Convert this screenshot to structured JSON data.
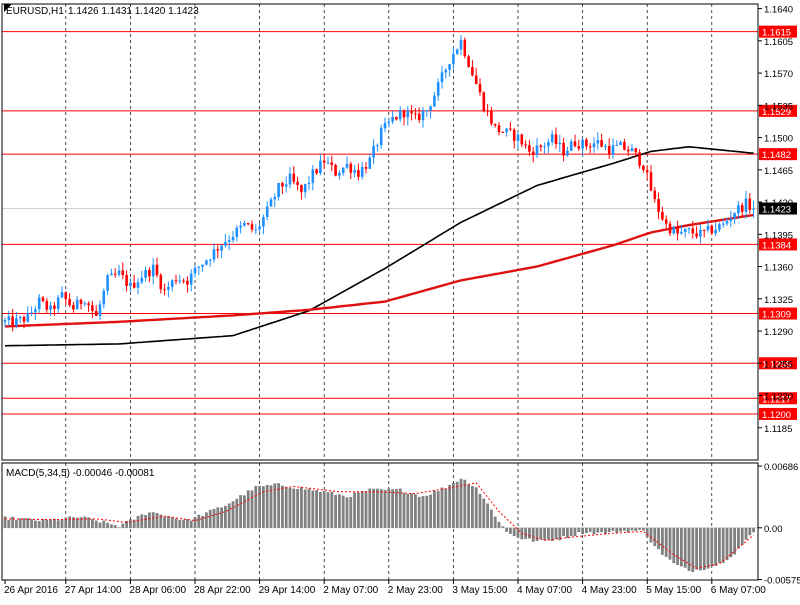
{
  "header": {
    "symbol": "EURUSD,H1",
    "ohlc": "1.1426 1.1431 1.1420 1.1423"
  },
  "macd_header": {
    "label": "MACD(5,34,5) -0.00046 -0.00081"
  },
  "colors": {
    "background": "#ffffff",
    "frame": "#000000",
    "bull_body": "#1e90ff",
    "bear_body": "#ff0000",
    "wick": "#1e90ff",
    "level_line": "#ff0000",
    "ma_fast": "#000000",
    "ma_slow": "#e01010",
    "grid": "#000000",
    "macd_hist": "#808080",
    "macd_signal": "#ff0000",
    "level_label_bg": "#ff0000",
    "current_label_bg": "#000000"
  },
  "chart_data": [
    {
      "type": "candlestick",
      "title": "EURUSD,H1",
      "timeframe": "H1",
      "ylim": [
        1.115,
        1.1645
      ],
      "y_ticks": [
        "1.1640",
        "1.1605",
        "1.1570",
        "1.1535",
        "1.1500",
        "1.1465",
        "1.1430",
        "1.1395",
        "1.1360",
        "1.1325",
        "1.1290",
        "1.1255",
        "1.1220",
        "1.1185"
      ],
      "x_ticks": [
        "26 Apr 2016",
        "27 Apr 14:00",
        "28 Apr 06:00",
        "28 Apr 22:00",
        "29 Apr 14:00",
        "2 May 07:00",
        "2 May 23:00",
        "3 May 15:00",
        "4 May 07:00",
        "4 May 23:00",
        "5 May 15:00",
        "6 May 07:00"
      ],
      "horizontal_levels": [
        "1.1615",
        "1.1529",
        "1.1482",
        "1.1384",
        "1.1309",
        "1.1255",
        "1.1217",
        "1.1200"
      ],
      "current_price": "1.1423",
      "grid": true,
      "close_anchors": [
        [
          0,
          1.13
        ],
        [
          3,
          1.13
        ],
        [
          6,
          1.1305
        ],
        [
          9,
          1.1322
        ],
        [
          12,
          1.1312
        ],
        [
          15,
          1.1328
        ],
        [
          18,
          1.1315
        ],
        [
          21,
          1.1326
        ],
        [
          24,
          1.1305
        ],
        [
          27,
          1.1345
        ],
        [
          30,
          1.1352
        ],
        [
          33,
          1.1338
        ],
        [
          36,
          1.135
        ],
        [
          39,
          1.1358
        ],
        [
          42,
          1.1333
        ],
        [
          45,
          1.1348
        ],
        [
          48,
          1.1345
        ],
        [
          51,
          1.136
        ],
        [
          54,
          1.1372
        ],
        [
          57,
          1.1385
        ],
        [
          60,
          1.1395
        ],
        [
          63,
          1.1405
        ],
        [
          66,
          1.1398
        ],
        [
          69,
          1.142
        ],
        [
          72,
          1.1445
        ],
        [
          75,
          1.1455
        ],
        [
          78,
          1.144
        ],
        [
          81,
          1.146
        ],
        [
          84,
          1.1475
        ],
        [
          87,
          1.1462
        ],
        [
          90,
          1.147
        ],
        [
          93,
          1.1462
        ],
        [
          96,
          1.1475
        ],
        [
          99,
          1.1505
        ],
        [
          102,
          1.152
        ],
        [
          105,
          1.1528
        ],
        [
          108,
          1.152
        ],
        [
          111,
          1.153
        ],
        [
          114,
          1.1555
        ],
        [
          117,
          1.1585
        ],
        [
          120,
          1.1605
        ],
        [
          123,
          1.157
        ],
        [
          126,
          1.1535
        ],
        [
          129,
          1.151
        ],
        [
          132,
          1.1505
        ],
        [
          135,
          1.15
        ],
        [
          138,
          1.1485
        ],
        [
          141,
          1.149
        ],
        [
          144,
          1.1498
        ],
        [
          147,
          1.1485
        ],
        [
          150,
          1.1495
        ],
        [
          153,
          1.1492
        ],
        [
          156,
          1.1495
        ],
        [
          159,
          1.1487
        ],
        [
          162,
          1.149
        ],
        [
          165,
          1.1485
        ],
        [
          168,
          1.147
        ],
        [
          171,
          1.143
        ],
        [
          174,
          1.1405
        ],
        [
          177,
          1.1395
        ],
        [
          180,
          1.1398
        ],
        [
          183,
          1.1395
        ],
        [
          186,
          1.14
        ],
        [
          189,
          1.1405
        ],
        [
          192,
          1.142
        ],
        [
          195,
          1.1428
        ],
        [
          197,
          1.1423
        ]
      ],
      "series": [
        {
          "type": "line",
          "points": [
            [
              0,
              1.1274
            ],
            [
              30,
              1.1276
            ],
            [
              60,
              1.1285
            ],
            [
              80,
              1.1312
            ],
            [
              100,
              1.1358
            ],
            [
              120,
              1.1408
            ],
            [
              140,
              1.1448
            ],
            [
              160,
              1.1472
            ],
            [
              170,
              1.1485
            ],
            [
              180,
              1.149
            ],
            [
              197,
              1.1483
            ]
          ]
        },
        {
          "type": "line",
          "points": [
            [
              0,
              1.1295
            ],
            [
              30,
              1.13
            ],
            [
              60,
              1.1307
            ],
            [
              80,
              1.1313
            ],
            [
              100,
              1.1322
            ],
            [
              120,
              1.1345
            ],
            [
              140,
              1.136
            ],
            [
              160,
              1.1383
            ],
            [
              170,
              1.1397
            ],
            [
              180,
              1.1405
            ],
            [
              197,
              1.1416
            ]
          ]
        }
      ]
    },
    {
      "type": "bar",
      "title": "MACD(5,34,5) -0.00046 -0.00081",
      "ylim": [
        -0.0058,
        0.0072
      ],
      "y_ticks": [
        "0.00686",
        "0.00",
        "-0.00575"
      ],
      "hist_anchors": [
        [
          0,
          0.0011
        ],
        [
          10,
          0.0008
        ],
        [
          20,
          0.0012
        ],
        [
          30,
          0.0002
        ],
        [
          38,
          0.0018
        ],
        [
          42,
          0.0014
        ],
        [
          48,
          0.0008
        ],
        [
          58,
          0.0025
        ],
        [
          66,
          0.0045
        ],
        [
          72,
          0.0048
        ],
        [
          84,
          0.004
        ],
        [
          90,
          0.0035
        ],
        [
          96,
          0.0042
        ],
        [
          104,
          0.0042
        ],
        [
          110,
          0.0035
        ],
        [
          116,
          0.0045
        ],
        [
          120,
          0.0055
        ],
        [
          124,
          0.0045
        ],
        [
          128,
          0.002
        ],
        [
          132,
          -0.0005
        ],
        [
          136,
          -0.0012
        ],
        [
          140,
          -0.0015
        ],
        [
          146,
          -0.0012
        ],
        [
          152,
          -0.0005
        ],
        [
          158,
          -0.0006
        ],
        [
          164,
          -0.0003
        ],
        [
          168,
          -0.0004
        ],
        [
          172,
          -0.0025
        ],
        [
          176,
          -0.004
        ],
        [
          180,
          -0.0048
        ],
        [
          184,
          -0.0045
        ],
        [
          188,
          -0.004
        ],
        [
          192,
          -0.0028
        ],
        [
          197,
          -0.0005
        ]
      ],
      "signal_anchors": [
        [
          0,
          0.001
        ],
        [
          12,
          0.0009
        ],
        [
          24,
          0.001
        ],
        [
          32,
          0.0006
        ],
        [
          42,
          0.0013
        ],
        [
          50,
          0.0008
        ],
        [
          58,
          0.0018
        ],
        [
          68,
          0.004
        ],
        [
          76,
          0.0046
        ],
        [
          88,
          0.004
        ],
        [
          98,
          0.004
        ],
        [
          108,
          0.0038
        ],
        [
          118,
          0.0045
        ],
        [
          124,
          0.005
        ],
        [
          130,
          0.0018
        ],
        [
          136,
          -0.0006
        ],
        [
          142,
          -0.0014
        ],
        [
          150,
          -0.001
        ],
        [
          160,
          -0.0006
        ],
        [
          168,
          -0.0004
        ],
        [
          176,
          -0.003
        ],
        [
          182,
          -0.0045
        ],
        [
          188,
          -0.004
        ],
        [
          197,
          -0.0008
        ]
      ]
    }
  ]
}
